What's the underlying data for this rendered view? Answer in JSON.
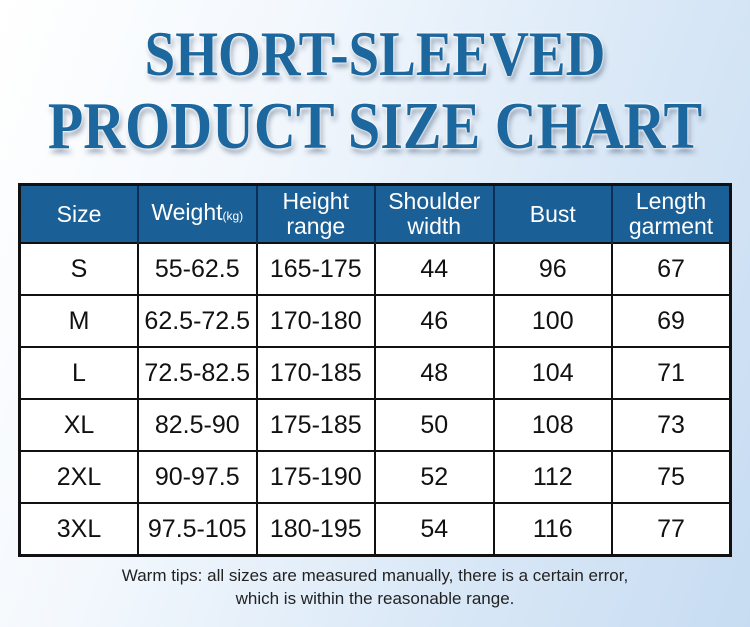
{
  "title": {
    "line1": "SHORT-SLEEVED",
    "line2": "PRODUCT SIZE CHART"
  },
  "table": {
    "headers": [
      {
        "label": "Size"
      },
      {
        "label": "Weight",
        "unit": "(kg)"
      },
      {
        "label": "Height range"
      },
      {
        "label": "Shoulder width"
      },
      {
        "label": "Bust"
      },
      {
        "label": "Length garment"
      }
    ],
    "rows": [
      [
        "S",
        "55-62.5",
        "165-175",
        "44",
        "96",
        "67"
      ],
      [
        "M",
        "62.5-72.5",
        "170-180",
        "46",
        "100",
        "69"
      ],
      [
        "L",
        "72.5-82.5",
        "170-185",
        "48",
        "104",
        "71"
      ],
      [
        "XL",
        "82.5-90",
        "175-185",
        "50",
        "108",
        "73"
      ],
      [
        "2XL",
        "90-97.5",
        "175-190",
        "52",
        "112",
        "75"
      ],
      [
        "3XL",
        "97.5-105",
        "180-195",
        "54",
        "116",
        "77"
      ]
    ]
  },
  "tips": {
    "line1": "Warm tips: all sizes are measured manually, there is a certain error,",
    "line2": "which is within the reasonable range."
  },
  "colors": {
    "title": "#1b679e",
    "header_bg": "#1b5f97"
  }
}
